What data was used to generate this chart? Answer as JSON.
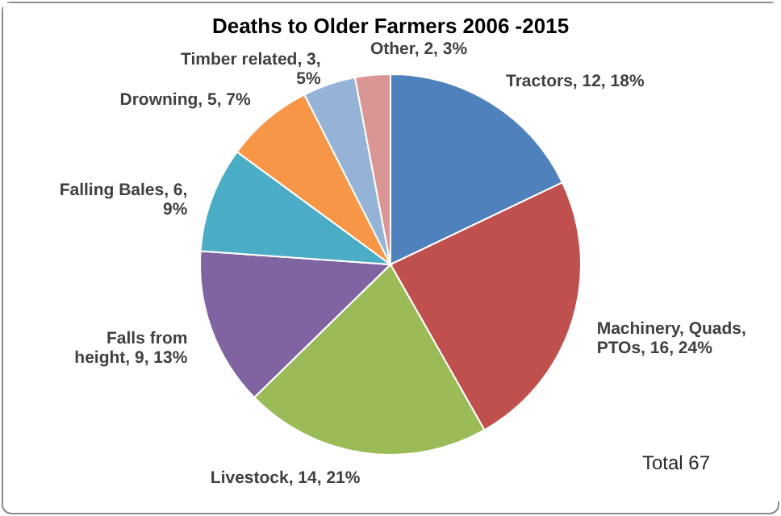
{
  "chart_data": {
    "type": "pie",
    "title": "Deaths to Older Farmers 2006 -2015",
    "categories": [
      "Tractors",
      "Machinery, Quads, PTOs",
      "Livestock",
      "Falls from height",
      "Falling Bales",
      "Drowning",
      "Timber related",
      "Other"
    ],
    "values": [
      12,
      16,
      14,
      9,
      6,
      5,
      3,
      2
    ],
    "value_labels": [
      "12, 18%",
      "16, 24%",
      "14, 21%",
      "9, 13%",
      "6, 9%",
      "5, 7%",
      "3, 5%",
      "2, 3%"
    ],
    "colors": [
      "#4f81bd",
      "#c0504d",
      "#9bbb59",
      "#8064a2",
      "#4bacc6",
      "#f79646",
      "#95b3d7",
      "#d99694"
    ],
    "annotations": [
      "Total 67"
    ],
    "legend": false
  }
}
